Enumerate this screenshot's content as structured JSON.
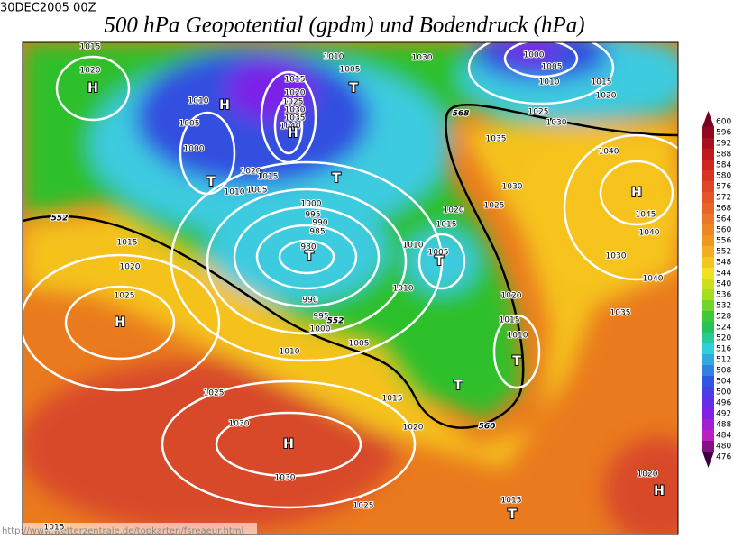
{
  "header": {
    "date": "30DEC2005 00Z",
    "title": "500 hPa Geopotential (gpdm) und Bodendruck (hPa)"
  },
  "colorbar": {
    "labels": [
      600,
      596,
      592,
      588,
      584,
      580,
      576,
      572,
      568,
      564,
      560,
      556,
      552,
      548,
      544,
      540,
      536,
      532,
      528,
      524,
      520,
      516,
      512,
      508,
      504,
      500,
      496,
      492,
      488,
      484,
      480,
      476
    ]
  },
  "map": {
    "pressure_centers": [
      "H",
      "H",
      "H",
      "H",
      "H",
      "H",
      "H",
      "T",
      "T",
      "T",
      "T",
      "T",
      "T",
      "T",
      "T"
    ],
    "isobar_labels": [
      "1015",
      "1020",
      "1010",
      "1005",
      "1000",
      "1020",
      "1015",
      "1010",
      "1005",
      "1010",
      "1005",
      "1015",
      "1020",
      "1025",
      "1030",
      "1035",
      "1040",
      "1030",
      "1000",
      "1005",
      "1010",
      "1015",
      "1020",
      "1025",
      "1030",
      "1035",
      "1040",
      "1030",
      "1025",
      "1020",
      "1015",
      "1010",
      "1005",
      "1000",
      "995",
      "990",
      "985",
      "980",
      "1045",
      "1040",
      "1030",
      "1040",
      "1035",
      "1015",
      "1020",
      "1025",
      "1010",
      "990",
      "995",
      "1000",
      "1005",
      "1010",
      "1020",
      "1015",
      "1010",
      "1025",
      "1015",
      "1020",
      "1030",
      "1030",
      "1025",
      "1015",
      "1020",
      "1015"
    ],
    "contour_labels": [
      "568",
      "552",
      "552",
      "560"
    ]
  },
  "footer": {
    "url": "http://www.wetterzentrale.de/topkarten/fsreaeur.html"
  }
}
